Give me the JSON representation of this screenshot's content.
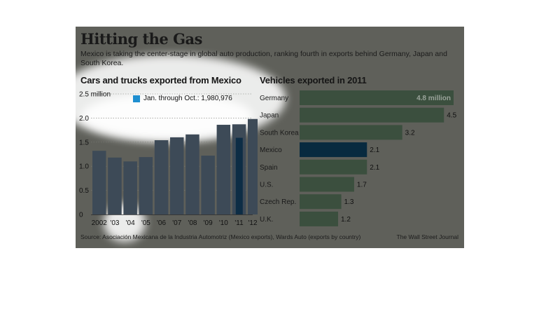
{
  "header": {
    "title": "Hitting the Gas",
    "subtitle": "Mexico is taking the center-stage in global auto production, ranking fourth in exports behind Germany, Japan and South Korea."
  },
  "footer": {
    "source": "Source: Asociación Mexicana de la Industria Automotriz (Mexico exports), Wards Auto (exports by country)",
    "credit": "The Wall Street Journal"
  },
  "colors": {
    "panel_bg": "#5f605a",
    "bar_left": "#3d4a57",
    "bar_left_highlight": "#0d2d45",
    "bar_right": "#3b4f3e",
    "bar_right_highlight": "#082a3f",
    "legend_accent": "#1f8fd0"
  },
  "chart_data": [
    {
      "type": "bar",
      "title": "Cars and trucks exported from Mexico",
      "categories": [
        "2002",
        "'03",
        "'04",
        "'05",
        "'06",
        "'07",
        "'08",
        "'09",
        "'10",
        "'11",
        "'12"
      ],
      "values": [
        1.32,
        1.18,
        1.1,
        1.19,
        1.54,
        1.6,
        1.66,
        1.22,
        1.86,
        1.87,
        1.98
      ],
      "partial_value": {
        "category": "'11",
        "value": 1.59
      },
      "ylim": [
        0,
        2.5
      ],
      "yticks": [
        "2.5 million",
        "2.0",
        "1.5",
        "1.0",
        "0.5",
        "0"
      ],
      "legend": "Jan. through Oct.: 1,980,976",
      "grid": true
    },
    {
      "type": "bar",
      "orientation": "horizontal",
      "title": "Vehicles exported in 2011",
      "categories": [
        "Germany",
        "Japan",
        "South Korea",
        "Mexico",
        "Spain",
        "U.S.",
        "Czech Rep.",
        "U.K."
      ],
      "values": [
        4.8,
        4.5,
        3.2,
        2.1,
        2.1,
        1.7,
        1.3,
        1.2
      ],
      "value_labels": [
        "4.8 million",
        "4.5",
        "3.2",
        "2.1",
        "2.1",
        "1.7",
        "1.3",
        "1.2"
      ],
      "highlight": "Mexico"
    }
  ]
}
